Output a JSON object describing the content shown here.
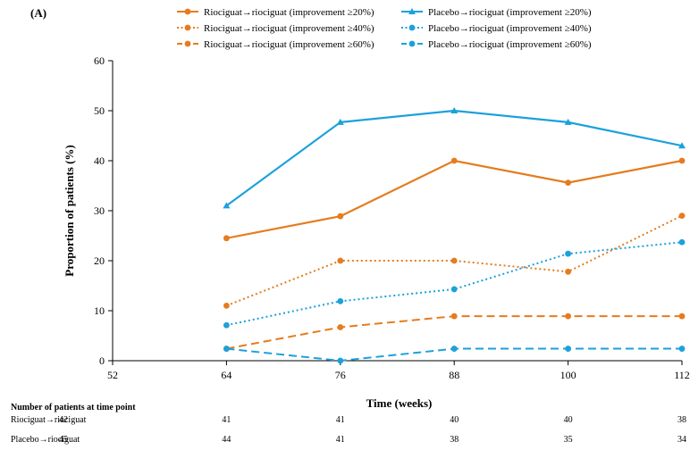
{
  "panel_label": "(A)",
  "colors": {
    "riociguat": "#E57C1E",
    "placebo": "#1BA1DB",
    "axis": "#000000"
  },
  "chart_data": {
    "type": "line",
    "title": "",
    "xlabel": "Time (weeks)",
    "ylabel": "Proportion of patients (%)",
    "xlim": [
      52,
      112
    ],
    "ylim": [
      0,
      60
    ],
    "x_ticks": [
      52,
      64,
      76,
      88,
      100,
      112
    ],
    "y_ticks": [
      0,
      10,
      20,
      30,
      40,
      50,
      60
    ],
    "grid": false,
    "legend_position": "top",
    "x": [
      64,
      76,
      88,
      100,
      112
    ],
    "series": [
      {
        "name": "Riociguat→riociguat (improvement ≥20%)",
        "color": "#E57C1E",
        "dash": "solid",
        "marker": "circle",
        "values": [
          24.5,
          28.9,
          40.0,
          35.6,
          40.0
        ]
      },
      {
        "name": "Placebo→riociguat (improvement ≥20%)",
        "color": "#1BA1DB",
        "dash": "solid",
        "marker": "triangle",
        "values": [
          31.0,
          47.7,
          50.0,
          47.7,
          43.0
        ]
      },
      {
        "name": "Riociguat→riociguat (improvement ≥40%)",
        "color": "#E57C1E",
        "dash": "dotted",
        "marker": "circle",
        "values": [
          11.0,
          20.0,
          20.0,
          17.8,
          29.0
        ]
      },
      {
        "name": "Placebo→riociguat (improvement ≥40%)",
        "color": "#1BA1DB",
        "dash": "dotted",
        "marker": "circle",
        "values": [
          7.1,
          11.9,
          14.3,
          21.4,
          23.7
        ]
      },
      {
        "name": "Riociguat→riociguat (improvement ≥60%)",
        "color": "#E57C1E",
        "dash": "dashed",
        "marker": "circle",
        "values": [
          2.4,
          6.7,
          8.9,
          8.9,
          8.9
        ]
      },
      {
        "name": "Placebo→riociguat (improvement ≥60%)",
        "color": "#1BA1DB",
        "dash": "dashed",
        "marker": "circle",
        "values": [
          2.4,
          0.0,
          2.4,
          2.4,
          2.4
        ]
      }
    ],
    "patients_table": {
      "title": "Number of patients at time point",
      "x": [
        52,
        64,
        76,
        88,
        100,
        112
      ],
      "rows": [
        {
          "label": "Riociguat→riociguat",
          "values": [
            "42",
            "41",
            "41",
            "40",
            "40",
            "38"
          ]
        },
        {
          "label": "Placebo→riociguat",
          "values": [
            "45",
            "44",
            "41",
            "38",
            "35",
            "34"
          ]
        }
      ]
    }
  }
}
